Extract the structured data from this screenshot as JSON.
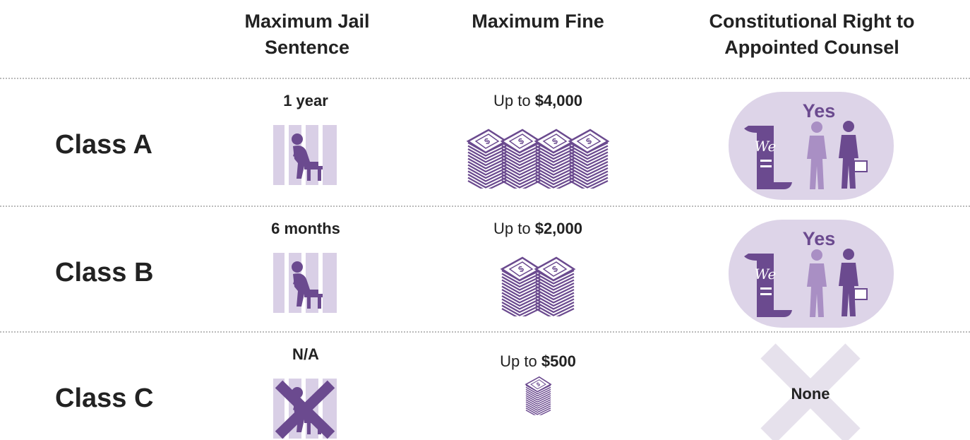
{
  "header": {
    "columns": [
      "Maximum Jail Sentence",
      "Maximum Fine",
      "Constitutional Right to Appointed Counsel"
    ]
  },
  "rows": [
    {
      "label": "Class A",
      "jail": "1 year",
      "fine": {
        "prefix": "Up to",
        "amount": "$4,000"
      },
      "counsel": "Yes"
    },
    {
      "label": "Class B",
      "jail": "6 months",
      "fine": {
        "prefix": "Up to",
        "amount": "$2,000"
      },
      "counsel": "Yes"
    },
    {
      "label": "Class C",
      "jail": "N/A",
      "fine": {
        "prefix": "Up to",
        "amount": "$500"
      },
      "counsel": "None"
    }
  ]
}
